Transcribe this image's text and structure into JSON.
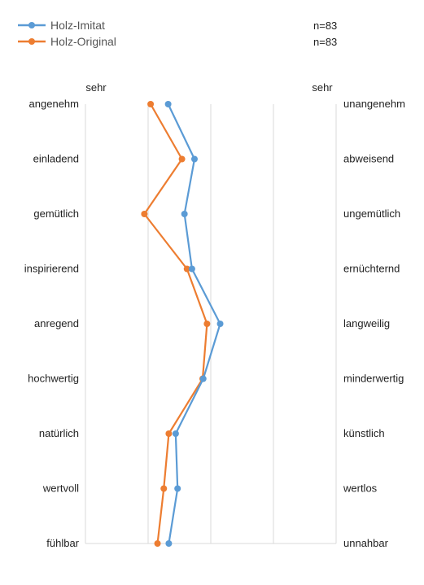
{
  "chart_data": {
    "type": "line",
    "orientation": "vertical-profile",
    "scale_label_left": "sehr",
    "scale_label_right": "sehr",
    "left_labels": [
      "angenehm",
      "einladend",
      "gemütlich",
      "inspirierend",
      "anregend",
      "hochwertig",
      "natürlich",
      "wertvoll",
      "fühlbar"
    ],
    "right_labels": [
      "unangenehm",
      "abweisend",
      "ungemütlich",
      "ernüchternd",
      "langweilig",
      "minderwertig",
      "künstlich",
      "wertlos",
      "unnahbar"
    ],
    "xlim": [
      1,
      5
    ],
    "grid": true,
    "legend_position": "top-left",
    "series": [
      {
        "name": "Holz-Imitat",
        "n_label": "n=83",
        "color": "#5B9BD5",
        "values": [
          2.32,
          2.74,
          2.58,
          2.7,
          3.15,
          2.88,
          2.44,
          2.47,
          2.33
        ]
      },
      {
        "name": "Holz-Original",
        "n_label": "n=83",
        "color": "#ED7D31",
        "values": [
          2.04,
          2.54,
          1.94,
          2.62,
          2.94,
          2.87,
          2.33,
          2.25,
          2.15
        ]
      }
    ]
  }
}
